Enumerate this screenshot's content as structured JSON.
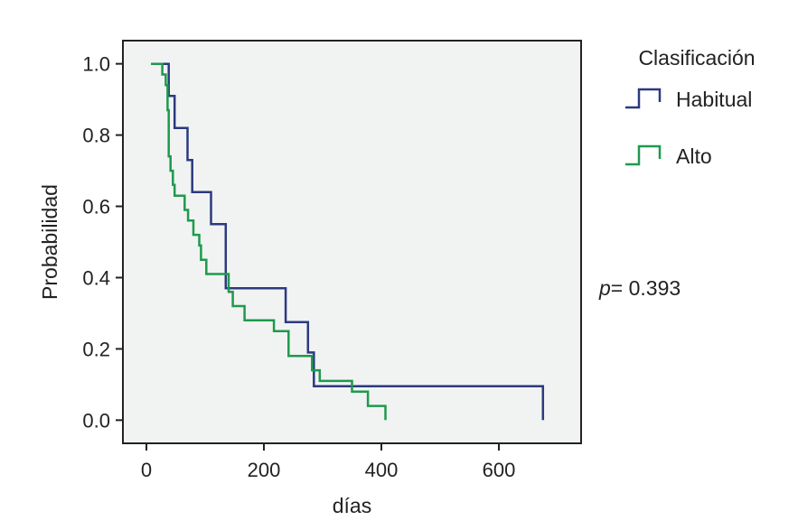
{
  "chart_data": {
    "type": "line",
    "subtype": "kaplan-meier step",
    "title": "",
    "xlabel": "días",
    "ylabel": "Probabilidad",
    "xlim": [
      -40,
      740
    ],
    "ylim": [
      -0.065,
      1.065
    ],
    "xticks": [
      0,
      200,
      400,
      600
    ],
    "xtick_labels": [
      "0",
      "200",
      "400",
      "600"
    ],
    "yticks": [
      0.0,
      0.2,
      0.4,
      0.6,
      0.8,
      1.0
    ],
    "ytick_labels": [
      "0.0",
      "0.2",
      "0.4",
      "0.6",
      "0.8",
      "1.0"
    ],
    "grid": false,
    "plot_background": "#f1f3f2",
    "legend": {
      "title": "Clasificación",
      "placement": "right",
      "entries": [
        "Habitual",
        "Alto"
      ]
    },
    "annotation": {
      "italic": "p",
      "text": "= 0.393"
    },
    "series": [
      {
        "name": "Habitual",
        "color": "#2b3a80",
        "x": [
          8,
          38,
          48,
          58,
          70,
          78,
          110,
          135,
          140,
          237,
          275,
          285,
          675,
          675
        ],
        "y": [
          1.0,
          0.91,
          0.82,
          0.82,
          0.73,
          0.64,
          0.55,
          0.37,
          0.37,
          0.275,
          0.19,
          0.095,
          0.095,
          0.0
        ]
      },
      {
        "name": "Alto",
        "color": "#1e9a4c",
        "x": [
          8,
          27,
          33,
          36,
          38,
          41,
          45,
          48,
          57,
          65,
          71,
          80,
          90,
          93,
          102,
          130,
          140,
          147,
          167,
          217,
          242,
          282,
          295,
          350,
          377,
          407,
          407
        ],
        "y": [
          1.0,
          0.97,
          0.94,
          0.87,
          0.74,
          0.7,
          0.66,
          0.63,
          0.63,
          0.59,
          0.56,
          0.52,
          0.49,
          0.45,
          0.41,
          0.41,
          0.36,
          0.32,
          0.28,
          0.25,
          0.18,
          0.14,
          0.11,
          0.08,
          0.04,
          0.04,
          0.0
        ]
      }
    ]
  }
}
